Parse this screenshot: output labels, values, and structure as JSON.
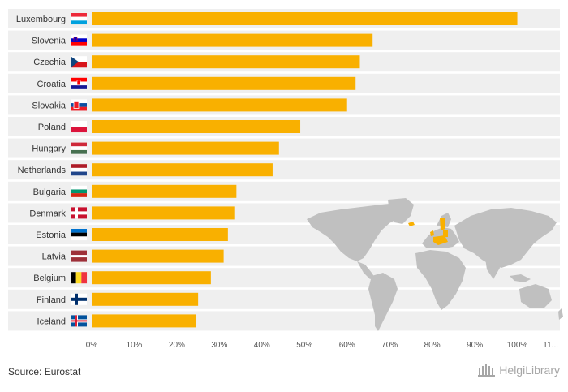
{
  "chart_data": {
    "type": "bar",
    "orientation": "horizontal",
    "categories": [
      "Luxembourg",
      "Slovenia",
      "Czechia",
      "Croatia",
      "Slovakia",
      "Poland",
      "Hungary",
      "Netherlands",
      "Bulgaria",
      "Denmark",
      "Estonia",
      "Latvia",
      "Belgium",
      "Finland",
      "Iceland"
    ],
    "values": [
      100,
      66,
      63,
      62,
      60,
      49,
      44,
      42.5,
      34,
      33.5,
      32,
      31,
      28,
      25,
      24.5
    ],
    "xlim": [
      0,
      110
    ],
    "xticks": [
      "0%",
      "10%",
      "20%",
      "30%",
      "40%",
      "50%",
      "60%",
      "70%",
      "80%",
      "90%",
      "100%",
      "11..."
    ],
    "bar_color": "#f9b000",
    "grid": false
  },
  "flags": [
    "luxembourg-flag",
    "slovenia-flag",
    "czechia-flag",
    "croatia-flag",
    "slovakia-flag",
    "poland-flag",
    "hungary-flag",
    "netherlands-flag",
    "bulgaria-flag",
    "denmark-flag",
    "estonia-flag",
    "latvia-flag",
    "belgium-flag",
    "finland-flag",
    "iceland-flag"
  ],
  "footer": {
    "source": "Source: Eurostat",
    "brand": "HelgiLibrary"
  },
  "colors": {
    "row_band": "#efefef",
    "map_land": "#c0c0c0",
    "map_highlight": "#f9b000"
  }
}
